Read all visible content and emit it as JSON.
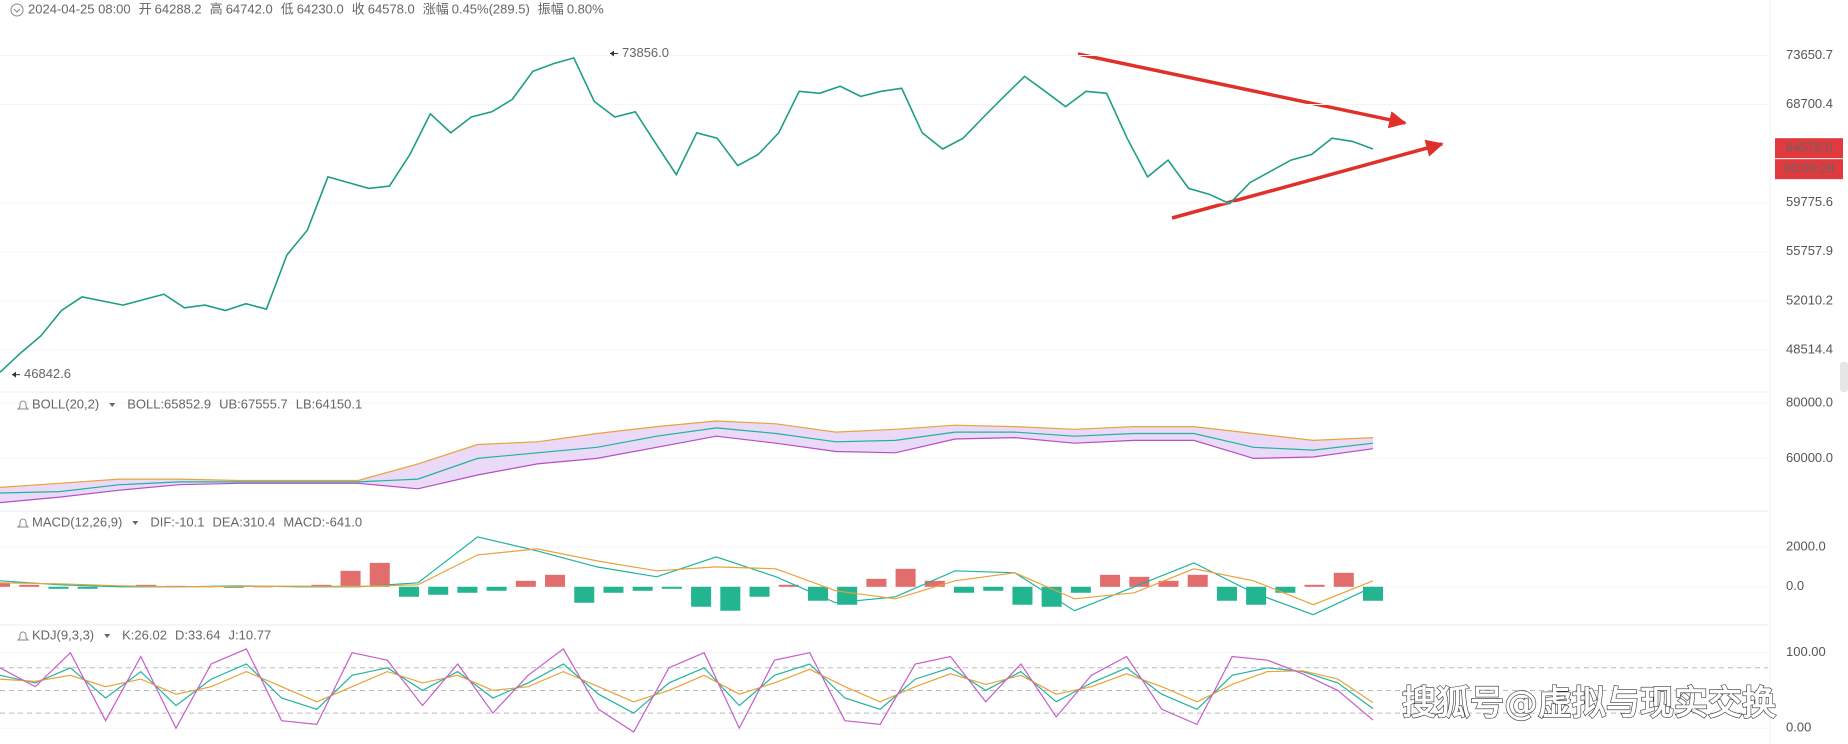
{
  "chart_data": [
    {
      "type": "line",
      "info": {
        "date": "2024-04-25 08:00",
        "fields": [
          {
            "label": "开",
            "value": "64288.2"
          },
          {
            "label": "高",
            "value": "64742.0"
          },
          {
            "label": "低",
            "value": "64230.0"
          },
          {
            "label": "收",
            "value": "64578.0"
          },
          {
            "label": "涨幅",
            "value": "0.45%(289.5)"
          },
          {
            "label": "振幅",
            "value": "0.80%"
          }
        ]
      },
      "values": [
        47000,
        48300,
        49500,
        51300,
        52300,
        52000,
        51700,
        52100,
        52500,
        51500,
        51700,
        51300,
        51800,
        51400,
        55500,
        57500,
        62000,
        61500,
        61000,
        61200,
        64000,
        67800,
        66000,
        67500,
        68000,
        69200,
        72000,
        72800,
        73400,
        69000,
        67500,
        68000,
        65000,
        62200,
        66000,
        65500,
        63000,
        64000,
        66000,
        70000,
        69800,
        70500,
        69500,
        70000,
        70300,
        66000,
        64500,
        65500,
        67500,
        69500,
        71500,
        70000,
        68500,
        70000,
        69800,
        65500,
        62000,
        63500,
        61000,
        60500,
        59700,
        61500,
        62500,
        63500,
        64000,
        65500,
        65200,
        64500
      ],
      "color": "#1f9e85",
      "log_scale": true,
      "ylim": [
        45900,
        79000
      ],
      "yticks": [
        73650.7,
        68700.4,
        59775.6,
        55757.9,
        52010.2,
        48514.4
      ],
      "annotations": [
        {
          "value": 73856,
          "label": "73856.0"
        },
        {
          "value": 46842.6,
          "label": "46842.6"
        }
      ],
      "last_price": {
        "value": 64578,
        "label": "64578.0"
      },
      "countdown": "03:09:29",
      "tag_color": "#e0393e",
      "trend_color": "#e0302a"
    },
    {
      "type": "line",
      "indicator": "BOLL(20,2)",
      "ylim": [
        41700,
        82550
      ],
      "yticks": [
        {
          "value": 80000,
          "label": "80000.0"
        },
        {
          "value": 60000,
          "label": "60000.0"
        }
      ],
      "band_color": "#ead9f7",
      "series": [
        {
          "name": "BOLL:65852.9",
          "color": "#1fb3a0",
          "values": [
            47500,
            48000,
            50500,
            51500,
            51500,
            51500,
            51500,
            52500,
            60000,
            62000,
            64000,
            68000,
            71000,
            69000,
            66000,
            66500,
            69500,
            69500,
            68000,
            69000,
            69000,
            64000,
            63000,
            65500
          ]
        },
        {
          "name": "UB:67555.7",
          "color": "#e8a33a",
          "values": [
            49500,
            51000,
            52500,
            52500,
            52000,
            52000,
            52000,
            58000,
            65000,
            66000,
            69000,
            71500,
            73500,
            72500,
            69500,
            70500,
            72000,
            71500,
            70500,
            71500,
            71500,
            69000,
            66500,
            67500
          ]
        },
        {
          "name": "LB:64150.1",
          "color": "#b44fc4",
          "values": [
            44000,
            46000,
            48500,
            50500,
            51000,
            51000,
            51000,
            49000,
            54000,
            58000,
            60000,
            64000,
            68000,
            65500,
            62500,
            62000,
            67000,
            67500,
            65500,
            66500,
            66500,
            60000,
            60500,
            63500
          ]
        }
      ]
    },
    {
      "type": "bar",
      "indicator": "MACD(12,26,9)",
      "ylim": [
        -1765,
        3650
      ],
      "yticks": [
        {
          "value": 2000,
          "label": "2000.0"
        },
        {
          "value": 0,
          "label": "0.0"
        }
      ],
      "histogram": {
        "name": "MACD:-641.0",
        "color": "#1fb3a0",
        "up_color": "#e26d6d",
        "down_color": "#22b58f",
        "values": [
          200,
          100,
          -100,
          -100,
          50,
          100,
          50,
          0,
          -50,
          0,
          50,
          100,
          800,
          1200,
          -500,
          -400,
          -300,
          -200,
          300,
          600,
          -800,
          -300,
          -200,
          -100,
          -1000,
          -1200,
          -500,
          100,
          -700,
          -900,
          400,
          900,
          300,
          -300,
          -200,
          -900,
          -1000,
          -300,
          600,
          500,
          300,
          600,
          -700,
          -900,
          -300,
          100,
          700,
          -700
        ]
      },
      "series": [
        {
          "name": "DIF:-10.1",
          "color": "#1fb3a0",
          "values": [
            300,
            100,
            0,
            0,
            50,
            0,
            0,
            200,
            2500,
            1800,
            1000,
            500,
            1500,
            500,
            -800,
            -500,
            800,
            700,
            -1200,
            0,
            1200,
            -300,
            -1400,
            0
          ]
        },
        {
          "name": "DEA:310.4",
          "color": "#e8a33a",
          "values": [
            200,
            150,
            50,
            0,
            20,
            30,
            20,
            100,
            1600,
            1900,
            1300,
            800,
            1000,
            900,
            -200,
            -600,
            300,
            700,
            -600,
            -300,
            900,
            300,
            -900,
            300
          ]
        }
      ]
    },
    {
      "type": "line",
      "indicator": "KDJ(9,3,3)",
      "ylim": [
        -15.6,
        134
      ],
      "yticks": [
        {
          "value": 100,
          "label": "100.00"
        },
        {
          "value": 0,
          "label": "0.00"
        }
      ],
      "guide_lines": [
        80,
        50,
        20
      ],
      "series": [
        {
          "name": "K:26.02",
          "color": "#1fb3a0",
          "values": [
            70,
            60,
            80,
            40,
            75,
            30,
            65,
            85,
            40,
            25,
            70,
            80,
            50,
            75,
            40,
            60,
            85,
            45,
            20,
            60,
            80,
            30,
            70,
            85,
            40,
            25,
            65,
            80,
            50,
            75,
            35,
            60,
            80,
            45,
            25,
            70,
            80,
            75,
            60,
            26.02
          ]
        },
        {
          "name": "D:33.64",
          "color": "#e8a33a",
          "values": [
            65,
            62,
            70,
            55,
            65,
            45,
            55,
            75,
            55,
            35,
            55,
            75,
            60,
            70,
            50,
            55,
            75,
            55,
            35,
            50,
            70,
            45,
            60,
            78,
            55,
            35,
            55,
            72,
            58,
            70,
            45,
            55,
            72,
            55,
            35,
            58,
            75,
            76,
            65,
            33.64
          ]
        },
        {
          "name": "J:10.77",
          "color": "#c75ccb",
          "values": [
            80,
            55,
            100,
            10,
            95,
            0,
            85,
            105,
            10,
            5,
            100,
            90,
            30,
            85,
            20,
            70,
            105,
            25,
            -5,
            80,
            100,
            0,
            90,
            100,
            10,
            5,
            85,
            95,
            35,
            85,
            15,
            70,
            95,
            25,
            5,
            95,
            90,
            72,
            50,
            10.77
          ]
        }
      ]
    }
  ],
  "watermark": "搜狐号@虚拟与现实交换"
}
